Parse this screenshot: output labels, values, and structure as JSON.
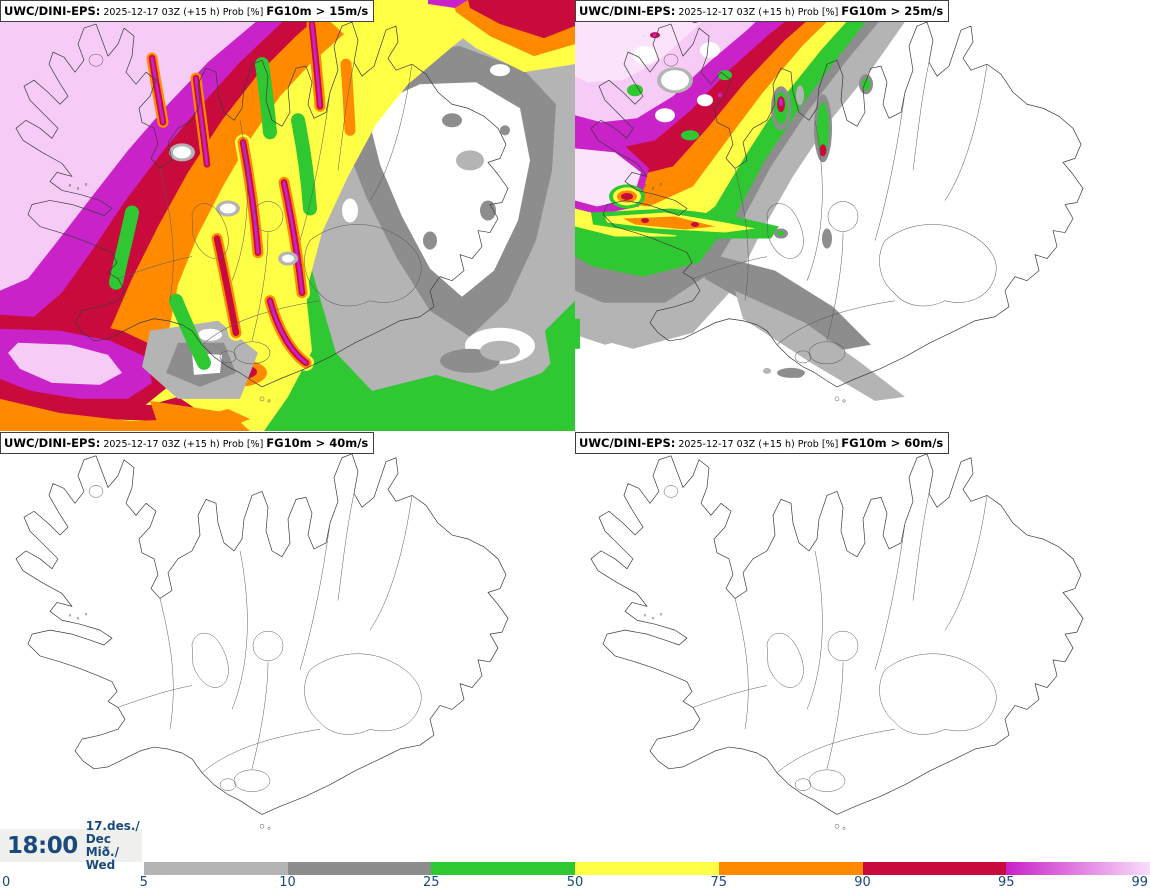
{
  "panels": [
    {
      "id": "prob-gt-15",
      "model": "UWC/DINI-EPS:",
      "meta": "2025-12-17 03Z (+15 h) Prob [%]",
      "threshold": "FG10m > 15m/s"
    },
    {
      "id": "prob-gt-25",
      "model": "UWC/DINI-EPS:",
      "meta": "2025-12-17 03Z (+15 h) Prob [%]",
      "threshold": "FG10m > 25m/s"
    },
    {
      "id": "prob-gt-40",
      "model": "UWC/DINI-EPS:",
      "meta": "2025-12-17 03Z (+15 h) Prob [%]",
      "threshold": "FG10m > 40m/s"
    },
    {
      "id": "prob-gt-60",
      "model": "UWC/DINI-EPS:",
      "meta": "2025-12-17 03Z (+15 h) Prob [%]",
      "threshold": "FG10m > 60m/s"
    }
  ],
  "time_box": {
    "time": "18:00",
    "date": "17.des./ Dec",
    "weekday": "Mið./ Wed"
  },
  "colorbar": {
    "unit": "%",
    "ticks": [
      "0",
      "5",
      "10",
      "25",
      "50",
      "75",
      "90",
      "95",
      "99"
    ],
    "text_color": "#17477c",
    "segments": [
      {
        "range": "0-5",
        "color": "#ffffff"
      },
      {
        "range": "5-10",
        "color": "#b4b4b4"
      },
      {
        "range": "10-25",
        "color": "#8d8d8d"
      },
      {
        "range": "25-50",
        "color": "#2fc832"
      },
      {
        "range": "50-75",
        "color": "#ffff46"
      },
      {
        "range": "75-90",
        "color": "#ff8a00"
      },
      {
        "range": "90-95",
        "color": "#c80a3c"
      },
      {
        "range": "95-99",
        "gradient": true,
        "color": "#c822c8",
        "color_end": "#f9ddfb"
      }
    ]
  }
}
